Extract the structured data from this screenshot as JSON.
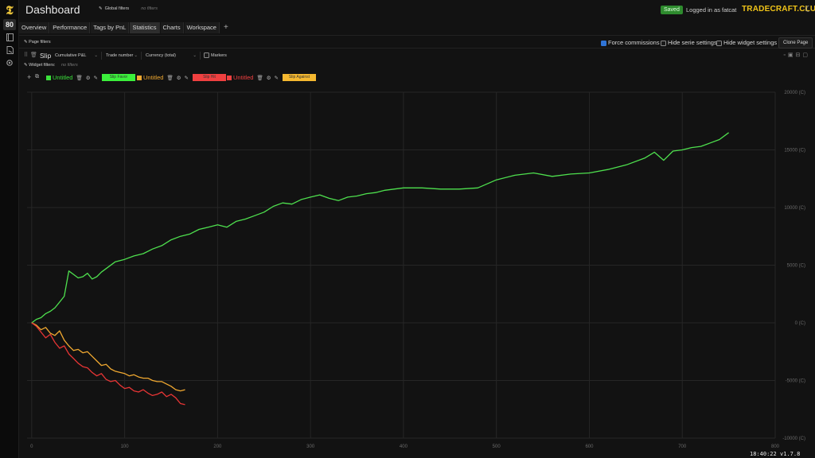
{
  "sidebar": {
    "logo": "𝕿",
    "items": [
      {
        "name": "dashboard",
        "label": "80"
      },
      {
        "name": "journal",
        "icon": "book-icon"
      },
      {
        "name": "docs",
        "icon": "document-icon"
      },
      {
        "name": "settings",
        "icon": "gear-icon"
      }
    ]
  },
  "header": {
    "title": "Dashboard",
    "global_filters_label": "Global filters",
    "global_filters_value": "no filters",
    "saved_badge": "Saved",
    "logged_in": "Logged in as fatcat",
    "brand": "TRADECRAFT.CLUB"
  },
  "tabs": [
    {
      "label": "Overview"
    },
    {
      "label": "Performance"
    },
    {
      "label": "Tags by PnL"
    },
    {
      "label": "Statistics"
    },
    {
      "label": "Charts"
    },
    {
      "label": "Workspace"
    }
  ],
  "tab_add": "+",
  "page_filters": {
    "label": "Page filters",
    "force_commissions": "Force commissions",
    "hide_serie_settings": "Hide serie settings",
    "hide_widget_settings": "Hide widget settings",
    "clone_page": "Clone Page"
  },
  "widget": {
    "title": "Slip",
    "metric": "Cumulative P&L",
    "x_axis": "Trade number",
    "currency": "Currency (total)",
    "markers": "Markers",
    "widget_filters_label": "Widget filters:",
    "widget_filters_value": "no filters"
  },
  "series_settings": [
    {
      "name": "Untitled",
      "color": "#3be03b",
      "tag": "Slip Favor",
      "tag_color": "#3bf03b"
    },
    {
      "name": "Untitled",
      "color": "#f0a830",
      "tag": "Slip Hit",
      "tag_color": "#f04040"
    },
    {
      "name": "Untitled",
      "color": "#f04040",
      "tag": "Slip Against",
      "tag_color": "#f5b830"
    }
  ],
  "chart_data": {
    "type": "line",
    "xlabel": "",
    "ylabel": "",
    "xlim": [
      -5,
      800
    ],
    "ylim": [
      -10000,
      20000
    ],
    "x_ticks": [
      "0",
      "100",
      "200",
      "300",
      "400",
      "500",
      "600",
      "700",
      "800"
    ],
    "y_ticks": [
      "20000 (C)",
      "15000 (C)",
      "10000 (C)",
      "5000 (C)",
      "0 (C)",
      "-5000 (C)",
      "-10000 (C)"
    ],
    "grid": true,
    "series": [
      {
        "color": "#4ee04e",
        "x": [
          0,
          5,
          10,
          15,
          20,
          25,
          30,
          35,
          40,
          45,
          50,
          55,
          60,
          65,
          70,
          75,
          80,
          90,
          100,
          110,
          120,
          130,
          140,
          150,
          160,
          170,
          180,
          190,
          200,
          210,
          220,
          230,
          240,
          250,
          260,
          270,
          280,
          290,
          300,
          310,
          320,
          330,
          340,
          350,
          360,
          370,
          380,
          390,
          400,
          420,
          440,
          460,
          480,
          500,
          520,
          540,
          560,
          580,
          600,
          620,
          640,
          660,
          670,
          680,
          690,
          700,
          710,
          720,
          730,
          740,
          750
        ],
        "values": [
          0,
          300,
          450,
          800,
          1000,
          1300,
          1800,
          2300,
          4500,
          4200,
          3900,
          4000,
          4300,
          3800,
          4000,
          4400,
          4700,
          5300,
          5500,
          5800,
          6000,
          6400,
          6700,
          7200,
          7500,
          7700,
          8100,
          8300,
          8500,
          8300,
          8800,
          9000,
          9300,
          9600,
          10100,
          10400,
          10300,
          10700,
          10900,
          11100,
          10800,
          10600,
          10900,
          11000,
          11200,
          11300,
          11500,
          11600,
          11700,
          11700,
          11600,
          11600,
          11700,
          12400,
          12800,
          13000,
          12700,
          12900,
          13000,
          13300,
          13700,
          14300,
          14800,
          14100,
          14900,
          15000,
          15200,
          15300,
          15600,
          15900,
          16500
        ]
      },
      {
        "color": "#f0a830",
        "x": [
          0,
          5,
          10,
          15,
          20,
          25,
          30,
          35,
          40,
          45,
          50,
          55,
          60,
          65,
          70,
          75,
          80,
          85,
          90,
          95,
          100,
          105,
          110,
          115,
          120,
          125,
          130,
          135,
          140,
          145,
          150,
          155,
          160,
          165
        ],
        "values": [
          0,
          -200,
          -600,
          -400,
          -900,
          -1100,
          -700,
          -1500,
          -2000,
          -2400,
          -2300,
          -2600,
          -2500,
          -2900,
          -3300,
          -3700,
          -3600,
          -4000,
          -4200,
          -4300,
          -4400,
          -4600,
          -4500,
          -4700,
          -4800,
          -4800,
          -5000,
          -5100,
          -5100,
          -5300,
          -5500,
          -5800,
          -5900,
          -5800
        ]
      },
      {
        "color": "#e83535",
        "x": [
          0,
          5,
          10,
          15,
          20,
          25,
          30,
          35,
          40,
          45,
          50,
          55,
          60,
          65,
          70,
          75,
          80,
          85,
          90,
          95,
          100,
          105,
          110,
          115,
          120,
          125,
          130,
          135,
          140,
          145,
          150,
          155,
          160,
          165
        ],
        "values": [
          0,
          -300,
          -800,
          -1300,
          -1000,
          -1700,
          -2200,
          -2000,
          -2700,
          -3100,
          -3500,
          -3800,
          -3900,
          -4300,
          -4600,
          -4400,
          -4900,
          -5100,
          -5000,
          -5400,
          -5700,
          -5600,
          -5900,
          -6000,
          -5800,
          -6100,
          -6300,
          -6200,
          -6000,
          -6400,
          -6200,
          -6500,
          -7000,
          -7100
        ]
      }
    ]
  },
  "footer": {
    "clock": "18:40:22",
    "version": "v1.7.8"
  }
}
